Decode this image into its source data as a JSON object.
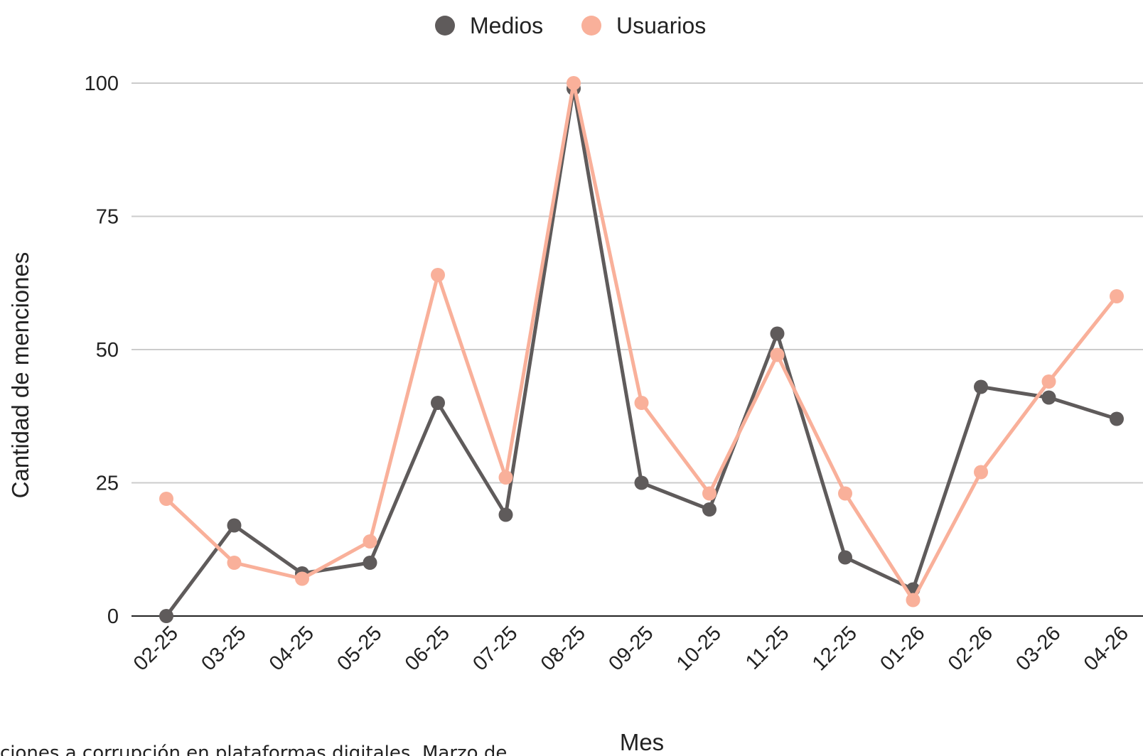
{
  "caption": "ciones a corrupción en plataformas digitales. Marzo de",
  "colors": {
    "medios": "#5f5b5b",
    "usuarios": "#f9b09a",
    "grid": "#cccccc",
    "axis": "#222222"
  },
  "chart_data": {
    "type": "line",
    "xlabel": "Mes",
    "ylabel": "Cantidad de menciones",
    "ylim": [
      0,
      100
    ],
    "yticks": [
      0,
      25,
      50,
      75,
      100
    ],
    "grid": true,
    "legend_position": "top",
    "categories": [
      "02-25",
      "03-25",
      "04-25",
      "05-25",
      "06-25",
      "07-25",
      "08-25",
      "09-25",
      "10-25",
      "11-25",
      "12-25",
      "01-26",
      "02-26",
      "03-26",
      "04-26"
    ],
    "series": [
      {
        "name": "Medios",
        "color": "#5f5b5b",
        "values": [
          0,
          17,
          8,
          10,
          40,
          19,
          99,
          25,
          20,
          53,
          11,
          5,
          43,
          41,
          37
        ]
      },
      {
        "name": "Usuarios",
        "color": "#f9b09a",
        "values": [
          22,
          10,
          7,
          14,
          64,
          26,
          100,
          40,
          23,
          49,
          23,
          3,
          27,
          44,
          60
        ]
      }
    ]
  }
}
